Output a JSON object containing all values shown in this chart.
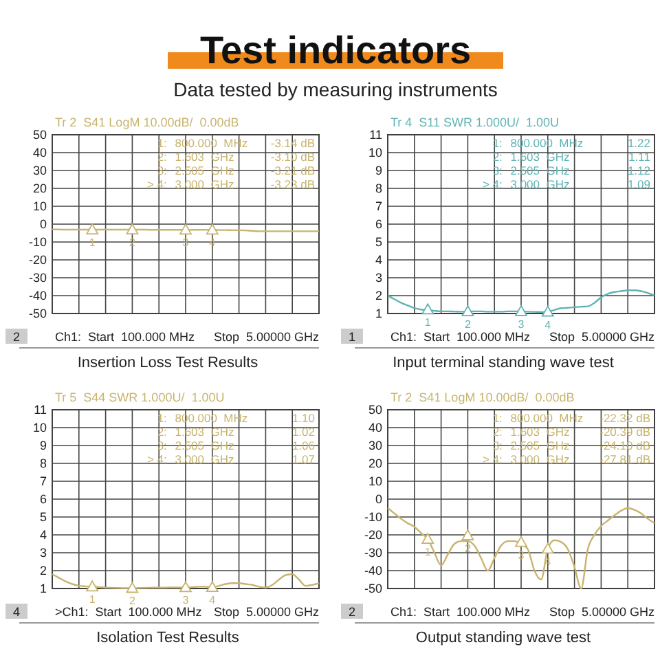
{
  "chart_data": [
    {
      "type": "other",
      "title": "Test indicators",
      "subtitle": "Data tested by measuring instruments"
    },
    {
      "type": "line",
      "title": "Insertion Loss Test Results",
      "subtitle": "Tr 2  S41 LogM 10.00dB/  0.00dB",
      "categories": [
        null,
        null,
        null,
        null,
        null,
        null,
        null,
        null,
        null,
        null,
        null,
        null,
        null,
        null,
        null,
        null,
        null,
        null,
        null,
        null,
        null,
        null,
        null,
        null,
        null,
        null,
        null,
        null,
        null,
        null,
        null,
        null,
        null,
        null,
        null,
        null,
        null,
        null,
        null,
        null,
        null
      ],
      "ylim": [
        -50,
        50
      ],
      "yticks": [
        50,
        40,
        30,
        20,
        10,
        0,
        -10,
        -20,
        -30,
        -40,
        -50
      ],
      "grid": true,
      "series": [
        {
          "color": "#c8b46e",
          "values": [
            -3.0,
            -3.0,
            -3.1,
            -3.1,
            -3.1,
            -3.1,
            -3.1,
            -3.1,
            -3.1,
            -3.1,
            -3.1,
            -3.1,
            -3.1,
            -3.1,
            -3.1,
            -3.2,
            -3.2,
            -3.2,
            -3.2,
            -3.2,
            -3.2,
            -3.2,
            -3.2,
            -3.2,
            -3.2,
            -3.3,
            -3.3,
            -3.4,
            -3.4,
            -3.5,
            -3.8,
            -4,
            -4,
            -4,
            -4,
            -4,
            -4,
            -4,
            -4,
            -4,
            -4
          ]
        },
        {
          "type": "scatter",
          "marker": "triangle",
          "name": "1",
          "color": "#c8b46e",
          "values": [
            null,
            null,
            null,
            null,
            null,
            null,
            -3.14,
            null,
            null,
            null,
            null,
            null,
            null,
            null,
            null,
            null,
            null,
            null,
            null,
            null,
            null,
            null,
            null,
            null,
            null,
            null,
            null,
            null,
            null,
            null,
            null,
            null,
            null,
            null,
            null,
            null,
            null,
            null,
            null,
            null,
            null
          ]
        },
        {
          "type": "scatter",
          "marker": "triangle",
          "name": "2",
          "color": "#c8b46e",
          "values": [
            null,
            null,
            null,
            null,
            null,
            null,
            null,
            null,
            null,
            null,
            null,
            null,
            -3.1,
            null,
            null,
            null,
            null,
            null,
            null,
            null,
            null,
            null,
            null,
            null,
            null,
            null,
            null,
            null,
            null,
            null,
            null,
            null,
            null,
            null,
            null,
            null,
            null,
            null,
            null,
            null,
            null
          ]
        },
        {
          "type": "scatter",
          "marker": "triangle",
          "name": "3",
          "color": "#c8b46e",
          "values": [
            null,
            null,
            null,
            null,
            null,
            null,
            null,
            null,
            null,
            null,
            null,
            null,
            null,
            null,
            null,
            null,
            null,
            null,
            null,
            null,
            -3.21,
            null,
            null,
            null,
            null,
            null,
            null,
            null,
            null,
            null,
            null,
            null,
            null,
            null,
            null,
            null,
            null,
            null,
            null,
            null,
            null
          ]
        },
        {
          "type": "scatter",
          "marker": "triangle",
          "name": "4",
          "color": "#c8b46e",
          "values": [
            null,
            null,
            null,
            null,
            null,
            null,
            null,
            null,
            null,
            null,
            null,
            null,
            null,
            null,
            null,
            null,
            null,
            null,
            null,
            null,
            null,
            null,
            null,
            null,
            -3.23,
            null,
            null,
            null,
            null,
            null,
            null,
            null,
            null,
            null,
            null,
            null,
            null,
            null,
            null,
            null,
            null
          ]
        }
      ],
      "annotations": [
        "2",
        "Ch1:  Start  100.000 MHz",
        "Stop  5.00000 GHz",
        "1:",
        "800.000  MHz",
        "-3.14 dB",
        "2:",
        "1.603  GHz",
        "-3.10 dB",
        "3:",
        "2.505  GHz",
        "-3.21 dB",
        "> 4:",
        "3.000  GHz",
        "-3.23 dB"
      ]
    },
    {
      "type": "line",
      "title": "Input terminal standing wave test",
      "subtitle": "Tr 4  S11 SWR 1.000U/  1.00U",
      "categories": [
        null,
        null,
        null,
        null,
        null,
        null,
        null,
        null,
        null,
        null,
        null,
        null,
        null,
        null,
        null,
        null,
        null,
        null,
        null,
        null,
        null,
        null,
        null,
        null,
        null,
        null,
        null,
        null,
        null,
        null,
        null,
        null,
        null,
        null,
        null,
        null,
        null,
        null,
        null,
        null,
        null
      ],
      "ylim": [
        1,
        11
      ],
      "yticks": [
        1,
        2,
        3,
        4,
        5,
        6,
        7,
        8,
        9,
        10,
        11
      ],
      "grid": true,
      "series": [
        {
          "color": "#5fb3b3",
          "values": [
            2.0,
            1.8,
            1.6,
            1.45,
            1.3,
            1.22,
            1.2,
            1.15,
            1.12,
            1.12,
            1.11,
            1.1,
            1.11,
            1.12,
            1.12,
            1.1,
            1.1,
            1.1,
            1.12,
            1.12,
            1.12,
            1.1,
            1.09,
            1.08,
            1.09,
            1.2,
            1.3,
            1.32,
            1.35,
            1.38,
            1.4,
            1.6,
            1.9,
            2.1,
            2.2,
            2.25,
            2.3,
            2.3,
            2.25,
            2.15,
            2.0
          ]
        },
        {
          "type": "scatter",
          "marker": "triangle",
          "name": "1",
          "color": "#5fb3b3",
          "values": [
            null,
            null,
            null,
            null,
            null,
            null,
            1.22,
            null,
            null,
            null,
            null,
            null,
            null,
            null,
            null,
            null,
            null,
            null,
            null,
            null,
            null,
            null,
            null,
            null,
            null,
            null,
            null,
            null,
            null,
            null,
            null,
            null,
            null,
            null,
            null,
            null,
            null,
            null,
            null,
            null,
            null
          ]
        },
        {
          "type": "scatter",
          "marker": "triangle",
          "name": "2",
          "color": "#5fb3b3",
          "values": [
            null,
            null,
            null,
            null,
            null,
            null,
            null,
            null,
            null,
            null,
            null,
            null,
            1.11,
            null,
            null,
            null,
            null,
            null,
            null,
            null,
            null,
            null,
            null,
            null,
            null,
            null,
            null,
            null,
            null,
            null,
            null,
            null,
            null,
            null,
            null,
            null,
            null,
            null,
            null,
            null,
            null
          ]
        },
        {
          "type": "scatter",
          "marker": "triangle",
          "name": "3",
          "color": "#5fb3b3",
          "values": [
            null,
            null,
            null,
            null,
            null,
            null,
            null,
            null,
            null,
            null,
            null,
            null,
            null,
            null,
            null,
            null,
            null,
            null,
            null,
            null,
            1.12,
            null,
            null,
            null,
            null,
            null,
            null,
            null,
            null,
            null,
            null,
            null,
            null,
            null,
            null,
            null,
            null,
            null,
            null,
            null,
            null
          ]
        },
        {
          "type": "scatter",
          "marker": "triangle",
          "name": "4",
          "color": "#5fb3b3",
          "values": [
            null,
            null,
            null,
            null,
            null,
            null,
            null,
            null,
            null,
            null,
            null,
            null,
            null,
            null,
            null,
            null,
            null,
            null,
            null,
            null,
            null,
            null,
            null,
            null,
            1.09,
            null,
            null,
            null,
            null,
            null,
            null,
            null,
            null,
            null,
            null,
            null,
            null,
            null,
            null,
            null,
            null
          ]
        }
      ],
      "annotations": [
        "1",
        "Ch1:  Start  100.000 MHz",
        "Stop  5.00000 GHz",
        "1:",
        "800.000  MHz",
        "1.22",
        "2:",
        "1.603  GHz",
        "1.11",
        "3:",
        "2.505  GHz",
        "1.12",
        "> 4:",
        "3.000  GHz",
        "1.09"
      ]
    },
    {
      "type": "line",
      "title": "Isolation Test Results",
      "subtitle": "Tr 5  S44 SWR 1.000U/  1.00U",
      "categories": [
        null,
        null,
        null,
        null,
        null,
        null,
        null,
        null,
        null,
        null,
        null,
        null,
        null,
        null,
        null,
        null,
        null,
        null,
        null,
        null,
        null,
        null,
        null,
        null,
        null,
        null,
        null,
        null,
        null,
        null,
        null,
        null,
        null,
        null,
        null,
        null,
        null,
        null,
        null,
        null,
        null
      ],
      "ylim": [
        1,
        11
      ],
      "yticks": [
        1,
        2,
        3,
        4,
        5,
        6,
        7,
        8,
        9,
        10,
        11
      ],
      "grid": true,
      "series": [
        {
          "color": "#c8b46e",
          "values": [
            1.8,
            1.6,
            1.4,
            1.25,
            1.15,
            1.12,
            1.1,
            1.08,
            1.05,
            1.04,
            1.03,
            1.02,
            1.02,
            1.03,
            1.04,
            1.05,
            1.05,
            1.05,
            1.06,
            1.06,
            1.06,
            1.08,
            1.1,
            1.1,
            1.07,
            1.15,
            1.25,
            1.3,
            1.3,
            1.25,
            1.2,
            1.1,
            1.05,
            1.2,
            1.5,
            1.75,
            1.8,
            1.5,
            1.15,
            1.2,
            1.3
          ]
        },
        {
          "type": "scatter",
          "marker": "triangle",
          "name": "1",
          "color": "#c8b46e",
          "values": [
            null,
            null,
            null,
            null,
            null,
            null,
            1.1,
            null,
            null,
            null,
            null,
            null,
            null,
            null,
            null,
            null,
            null,
            null,
            null,
            null,
            null,
            null,
            null,
            null,
            null,
            null,
            null,
            null,
            null,
            null,
            null,
            null,
            null,
            null,
            null,
            null,
            null,
            null,
            null,
            null,
            null
          ]
        },
        {
          "type": "scatter",
          "marker": "triangle",
          "name": "2",
          "color": "#c8b46e",
          "values": [
            null,
            null,
            null,
            null,
            null,
            null,
            null,
            null,
            null,
            null,
            null,
            null,
            1.02,
            null,
            null,
            null,
            null,
            null,
            null,
            null,
            null,
            null,
            null,
            null,
            null,
            null,
            null,
            null,
            null,
            null,
            null,
            null,
            null,
            null,
            null,
            null,
            null,
            null,
            null,
            null,
            null
          ]
        },
        {
          "type": "scatter",
          "marker": "triangle",
          "name": "3",
          "color": "#c8b46e",
          "values": [
            null,
            null,
            null,
            null,
            null,
            null,
            null,
            null,
            null,
            null,
            null,
            null,
            null,
            null,
            null,
            null,
            null,
            null,
            null,
            null,
            1.06,
            null,
            null,
            null,
            null,
            null,
            null,
            null,
            null,
            null,
            null,
            null,
            null,
            null,
            null,
            null,
            null,
            null,
            null,
            null,
            null
          ]
        },
        {
          "type": "scatter",
          "marker": "triangle",
          "name": "4",
          "color": "#c8b46e",
          "values": [
            null,
            null,
            null,
            null,
            null,
            null,
            null,
            null,
            null,
            null,
            null,
            null,
            null,
            null,
            null,
            null,
            null,
            null,
            null,
            null,
            null,
            null,
            null,
            null,
            1.07,
            null,
            null,
            null,
            null,
            null,
            null,
            null,
            null,
            null,
            null,
            null,
            null,
            null,
            null,
            null,
            null
          ]
        }
      ],
      "annotations": [
        "4",
        ">Ch1:  Start  100.000 MHz",
        "Stop  5.00000 GHz",
        "1:",
        "800.000  MHz",
        "1.10",
        "2:",
        "1.603  GHz",
        "1.02",
        "3:",
        "2.505  GHz",
        "1.06",
        "> 4:",
        "3.000  GHz",
        "1.07"
      ]
    },
    {
      "type": "line",
      "title": "Output standing wave test",
      "subtitle": "Tr 2  S41 LogM 10.00dB/  0.00dB",
      "categories": [
        null,
        null,
        null,
        null,
        null,
        null,
        null,
        null,
        null,
        null,
        null,
        null,
        null,
        null,
        null,
        null,
        null,
        null,
        null,
        null,
        null,
        null,
        null,
        null,
        null,
        null,
        null,
        null,
        null,
        null,
        null,
        null,
        null,
        null,
        null,
        null,
        null,
        null,
        null,
        null,
        null
      ],
      "ylim": [
        -50,
        50
      ],
      "yticks": [
        50,
        40,
        30,
        20,
        10,
        0,
        -10,
        -20,
        -30,
        -40,
        -50
      ],
      "grid": true,
      "series": [
        {
          "color": "#c8b46e",
          "values": [
            -5,
            -8,
            -11,
            -13.5,
            -15.5,
            -19,
            -22.3,
            -30,
            -37,
            -31,
            -25,
            -23.5,
            -23.5,
            -26,
            -33,
            -40,
            -33,
            -26,
            -23.5,
            -23.5,
            -25,
            -28,
            -40,
            -45,
            -27.8,
            -23,
            -24,
            -28,
            -38,
            -50,
            -28,
            -20,
            -15,
            -12,
            -9,
            -6.5,
            -5,
            -6,
            -8,
            -11,
            -13.5
          ]
        },
        {
          "type": "scatter",
          "marker": "triangle",
          "name": "1",
          "color": "#c8b46e",
          "values": [
            null,
            null,
            null,
            null,
            null,
            null,
            -22.32,
            null,
            null,
            null,
            null,
            null,
            null,
            null,
            null,
            null,
            null,
            null,
            null,
            null,
            null,
            null,
            null,
            null,
            null,
            null,
            null,
            null,
            null,
            null,
            null,
            null,
            null,
            null,
            null,
            null,
            null,
            null,
            null,
            null,
            null
          ]
        },
        {
          "type": "scatter",
          "marker": "triangle",
          "name": "2",
          "color": "#c8b46e",
          "values": [
            null,
            null,
            null,
            null,
            null,
            null,
            null,
            null,
            null,
            null,
            null,
            null,
            -20.39,
            null,
            null,
            null,
            null,
            null,
            null,
            null,
            null,
            null,
            null,
            null,
            null,
            null,
            null,
            null,
            null,
            null,
            null,
            null,
            null,
            null,
            null,
            null,
            null,
            null,
            null,
            null,
            null
          ]
        },
        {
          "type": "scatter",
          "marker": "triangle",
          "name": "3",
          "color": "#c8b46e",
          "values": [
            null,
            null,
            null,
            null,
            null,
            null,
            null,
            null,
            null,
            null,
            null,
            null,
            null,
            null,
            null,
            null,
            null,
            null,
            null,
            null,
            -24.1,
            null,
            null,
            null,
            null,
            null,
            null,
            null,
            null,
            null,
            null,
            null,
            null,
            null,
            null,
            null,
            null,
            null,
            null,
            null,
            null
          ]
        },
        {
          "type": "scatter",
          "marker": "triangle",
          "name": "4",
          "color": "#c8b46e",
          "values": [
            null,
            null,
            null,
            null,
            null,
            null,
            null,
            null,
            null,
            null,
            null,
            null,
            null,
            null,
            null,
            null,
            null,
            null,
            null,
            null,
            null,
            null,
            null,
            null,
            -27.81,
            null,
            null,
            null,
            null,
            null,
            null,
            null,
            null,
            null,
            null,
            null,
            null,
            null,
            null,
            null,
            null
          ]
        }
      ],
      "annotations": [
        "2",
        "Ch1:  Start  100.000 MHz",
        "Stop  5.00000 GHz",
        "1:",
        "800.000  MHz",
        "-22.32 dB",
        "2:",
        "1.603  GHz",
        "-20.39 dB",
        "3:",
        "2.505  GHz",
        "-24.10 dB",
        "> 4:",
        "3.000  GHz",
        "-27.81 dB"
      ]
    }
  ]
}
